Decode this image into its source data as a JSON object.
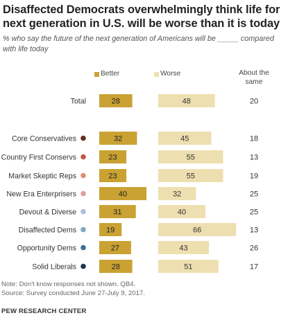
{
  "title": "Disaffected Democrats overwhelmingly think life for next generation in U.S. will be worse than it is today",
  "subtitle": "% who say the future of the next generation of Americans will be _____ compared with life today",
  "legend": {
    "better": "Better",
    "worse": "Worse",
    "same": "About the same"
  },
  "colors": {
    "better": "#C9A233",
    "worse": "#EEDFB0"
  },
  "chart_data": {
    "type": "bar",
    "title": "Disaffected Democrats overwhelmingly think life for next generation in U.S. will be worse than it is today",
    "categories": [
      "Total",
      "Core Conservatives",
      "Country First Conservs",
      "Market Skeptic Reps",
      "New Era Enterprisers",
      "Devout & Diverse",
      "Disaffected Dems",
      "Opportunity Dems",
      "Solid Liberals"
    ],
    "series": [
      {
        "name": "Better",
        "values": [
          28,
          32,
          23,
          23,
          40,
          31,
          19,
          27,
          28
        ]
      },
      {
        "name": "Worse",
        "values": [
          48,
          45,
          55,
          55,
          32,
          40,
          66,
          43,
          51
        ]
      },
      {
        "name": "About the same",
        "values": [
          20,
          18,
          13,
          19,
          25,
          25,
          13,
          26,
          17
        ]
      }
    ],
    "dot_colors": [
      "",
      "#6B2C22",
      "#C4573F",
      "#E08C77",
      "#DE9E9D",
      "#A9BFD8",
      "#7EA6C6",
      "#3B6D99",
      "#1E3550"
    ],
    "legend_position": "top"
  },
  "notes": {
    "note": "Note: Don't know responses not shown. QB4.",
    "source": "Source: Survey conducted June 27-July 9, 2017."
  },
  "brand": "PEW RESEARCH CENTER"
}
